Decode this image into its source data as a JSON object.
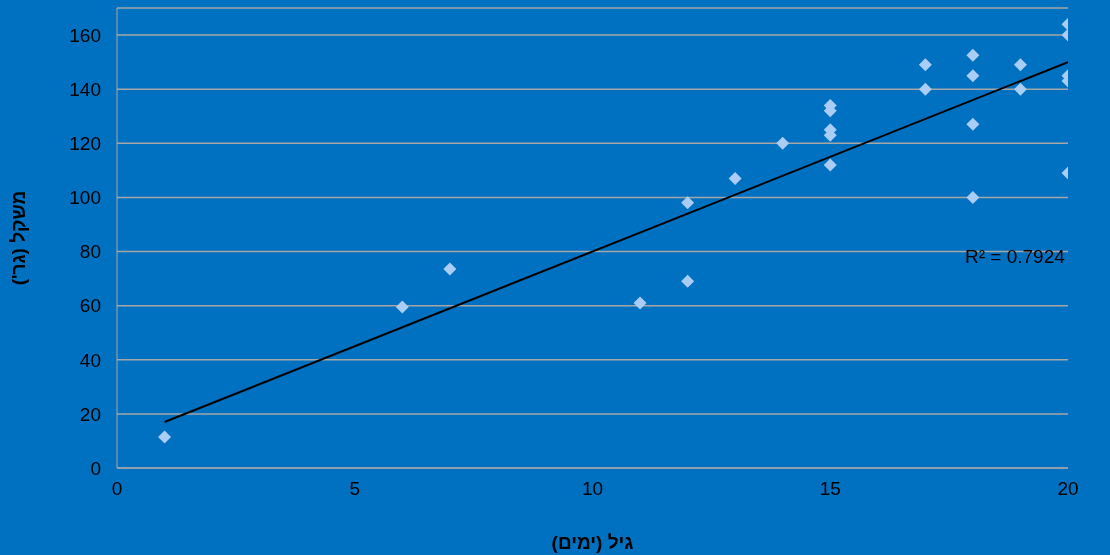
{
  "chart_data": {
    "type": "scatter",
    "xlabel": "גיל (ימים)",
    "ylabel": "משקל (גר')",
    "xlim": [
      0,
      20
    ],
    "xticks": [
      0,
      5,
      10,
      15,
      20
    ],
    "ylim": [
      0,
      170
    ],
    "yticks": [
      0,
      20,
      40,
      60,
      80,
      100,
      120,
      140,
      160
    ],
    "grid": "y",
    "marker": "diamond",
    "annotations": [
      "R² = 0.7924"
    ],
    "series": [
      {
        "color": "#a9cdf4",
        "x": [
          1,
          6,
          7,
          11,
          12,
          12,
          13,
          14,
          15,
          15,
          15,
          15,
          15,
          17,
          17,
          18,
          18,
          18,
          18,
          19,
          19,
          20,
          20,
          20,
          20,
          20
        ],
        "values": [
          11.5,
          59.5,
          73.5,
          61,
          98,
          69,
          107,
          120,
          134,
          132,
          125,
          123,
          112,
          149,
          140,
          152.5,
          145,
          127,
          100,
          149,
          140,
          164,
          160,
          145,
          143,
          109
        ]
      },
      {
        "type": "line",
        "color": "#000000",
        "marker": "none",
        "x": [
          1,
          20
        ],
        "values": [
          17,
          150
        ]
      }
    ]
  }
}
